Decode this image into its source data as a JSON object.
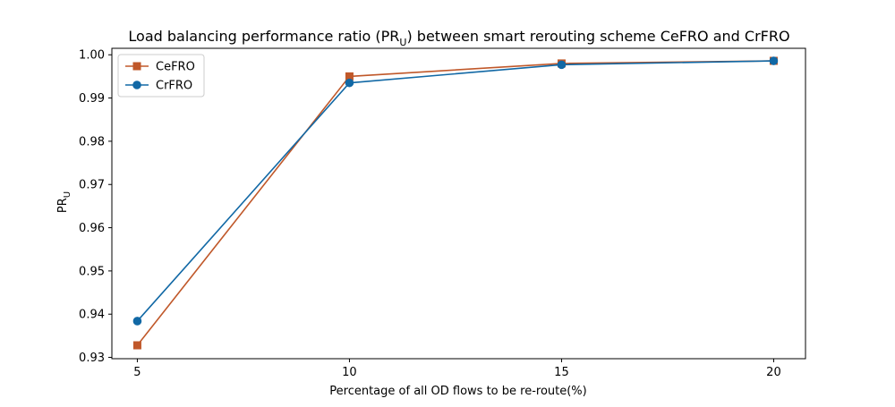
{
  "chart_data": {
    "type": "line",
    "title": "Load balancing performance ratio (PR",
    "title_sub": "U",
    "title_suffix": ") between smart rerouting scheme CeFRO and CrFRO",
    "xlabel": "Percentage of all OD flows to be re-route(%)",
    "ylabel": "PR",
    "ylabel_sub": "U",
    "x": [
      5,
      10,
      15,
      20
    ],
    "xlim": [
      4.4,
      20.75
    ],
    "ylim": [
      0.9297,
      1.0015
    ],
    "x_ticks": [
      5,
      10,
      15,
      20
    ],
    "y_ticks": [
      0.93,
      0.94,
      0.95,
      0.96,
      0.97,
      0.98,
      0.99,
      1.0
    ],
    "y_tick_labels": [
      "0.93",
      "0.94",
      "0.95",
      "0.96",
      "0.97",
      "0.98",
      "0.99",
      "1.00"
    ],
    "grid": false,
    "legend_position": "top-left",
    "series": [
      {
        "name": "CeFRO",
        "values": [
          0.9328,
          0.995,
          0.998,
          0.9986
        ],
        "color": "#c0582a",
        "marker": "square"
      },
      {
        "name": "CrFRO",
        "values": [
          0.9384,
          0.9935,
          0.9977,
          0.9986
        ],
        "color": "#1168a5",
        "marker": "circle"
      }
    ]
  }
}
